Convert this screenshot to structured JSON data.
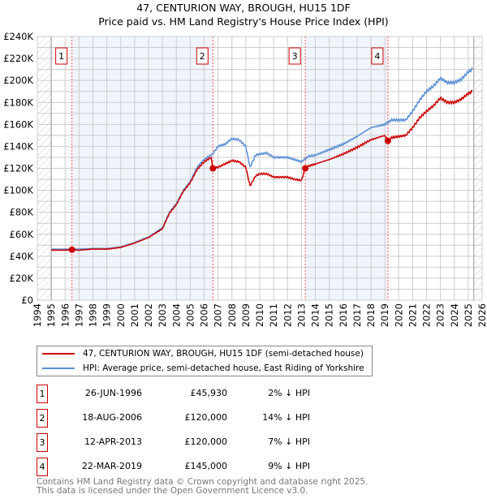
{
  "chart_data": {
    "type": "line",
    "title": "47, CENTURION WAY, BROUGH, HU15 1DF",
    "subtitle": "Price paid vs. HM Land Registry's House Price Index (HPI)",
    "xlim": [
      1994,
      2026
    ],
    "ylim": [
      0,
      240000
    ],
    "x_ticks": [
      "1994",
      "1995",
      "1996",
      "1997",
      "1998",
      "1999",
      "2000",
      "2001",
      "2002",
      "2003",
      "2004",
      "2005",
      "2006",
      "2007",
      "2008",
      "2009",
      "2010",
      "2011",
      "2012",
      "2013",
      "2014",
      "2015",
      "2016",
      "2017",
      "2018",
      "2019",
      "2020",
      "2021",
      "2022",
      "2023",
      "2024",
      "2025",
      "2026"
    ],
    "y_ticks": [
      {
        "v": 0,
        "label": "£0"
      },
      {
        "v": 20000,
        "label": "£20K"
      },
      {
        "v": 40000,
        "label": "£40K"
      },
      {
        "v": 60000,
        "label": "£60K"
      },
      {
        "v": 80000,
        "label": "£80K"
      },
      {
        "v": 100000,
        "label": "£100K"
      },
      {
        "v": 120000,
        "label": "£120K"
      },
      {
        "v": 140000,
        "label": "£140K"
      },
      {
        "v": 160000,
        "label": "£160K"
      },
      {
        "v": 180000,
        "label": "£180K"
      },
      {
        "v": 200000,
        "label": "£200K"
      },
      {
        "v": 220000,
        "label": "£220K"
      },
      {
        "v": 240000,
        "label": "£240K"
      }
    ],
    "grid": true,
    "data_range": [
      1995,
      2025.4
    ],
    "series": [
      {
        "name": "47, CENTURION WAY, BROUGH, HU15 1DF (semi-detached house)",
        "color": "#cc0000",
        "x": [
          1995,
          1996,
          1996.5,
          1997,
          1998,
          1999,
          2000,
          2001,
          2002,
          2003,
          2003.5,
          2004,
          2004.5,
          2005,
          2005.5,
          2006,
          2006.5,
          2006.62,
          2007,
          2007.5,
          2008,
          2008.5,
          2009,
          2009.3,
          2009.7,
          2010,
          2010.5,
          2011,
          2011.5,
          2012,
          2012.5,
          2013,
          2013.28,
          2013.5,
          2014,
          2015,
          2016,
          2017,
          2018,
          2019,
          2019.22,
          2019.5,
          2020,
          2020.5,
          2021,
          2021.5,
          2022,
          2022.5,
          2023,
          2023.5,
          2024,
          2024.5,
          2025,
          2025.3
        ],
        "values": [
          45500,
          45500,
          45930,
          45500,
          46500,
          46500,
          48000,
          52000,
          57000,
          65000,
          79000,
          87000,
          99000,
          107000,
          119000,
          126000,
          130000,
          120000,
          121000,
          124000,
          127000,
          126000,
          121000,
          104000,
          113000,
          115000,
          115000,
          112000,
          112000,
          112000,
          110000,
          109000,
          120000,
          122000,
          124000,
          128000,
          133000,
          139000,
          146000,
          150000,
          145000,
          148000,
          149000,
          150000,
          157000,
          166000,
          172000,
          177000,
          184000,
          180000,
          180000,
          183000,
          188000,
          190000
        ]
      },
      {
        "name": "HPI: Average price, semi-detached house, East Riding of Yorkshire",
        "color": "#5b8fd6",
        "x": [
          1995,
          1996,
          1997,
          1998,
          1999,
          2000,
          2001,
          2002,
          2003,
          2003.5,
          2004,
          2004.5,
          2005,
          2005.5,
          2006,
          2006.6,
          2007,
          2007.5,
          2008,
          2008.5,
          2009,
          2009.3,
          2009.7,
          2010,
          2010.5,
          2011,
          2011.5,
          2012,
          2012.5,
          2013,
          2013.5,
          2014,
          2015,
          2016,
          2017,
          2018,
          2019,
          2019.5,
          2020,
          2020.5,
          2021,
          2021.5,
          2022,
          2022.5,
          2023,
          2023.5,
          2024,
          2024.5,
          2025,
          2025.3
        ],
        "values": [
          46500,
          46500,
          46500,
          47000,
          47000,
          48500,
          52500,
          57500,
          66000,
          80000,
          88000,
          100000,
          108000,
          121000,
          128000,
          133000,
          140000,
          142000,
          147000,
          146000,
          140000,
          121000,
          132000,
          133000,
          134000,
          130000,
          130000,
          130000,
          128000,
          126000,
          131000,
          132000,
          137000,
          142000,
          149000,
          157000,
          160000,
          164000,
          164000,
          164000,
          172000,
          182000,
          190000,
          195000,
          202000,
          198000,
          198000,
          201000,
          208000,
          210000
        ]
      }
    ],
    "sales": [
      {
        "id": "1",
        "x": 1996.49,
        "value": 45930,
        "date": "26-JUN-1996",
        "price": "£45,930",
        "hpi": "2% ↓ HPI"
      },
      {
        "id": "2",
        "x": 2006.63,
        "value": 120000,
        "date": "18-AUG-2006",
        "price": "£120,000",
        "hpi": "14% ↓ HPI"
      },
      {
        "id": "3",
        "x": 2013.28,
        "value": 120000,
        "date": "12-APR-2013",
        "price": "£120,000",
        "hpi": "7% ↓ HPI"
      },
      {
        "id": "4",
        "x": 2019.22,
        "value": 145000,
        "date": "22-MAR-2019",
        "price": "£145,000",
        "hpi": "9% ↓ HPI"
      }
    ]
  },
  "footer": {
    "line1": "Contains HM Land Registry data © Crown copyright and database right 2025.",
    "line2": "This data is licensed under the Open Government Licence v3.0."
  }
}
